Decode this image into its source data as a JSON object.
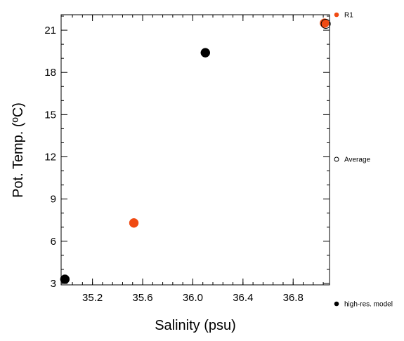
{
  "chart_data": {
    "type": "scatter",
    "xlabel": "Salinity (psu)",
    "ylabel": "Pot. Temp. (ºC)",
    "xlim": [
      34.95,
      37.09
    ],
    "ylim": [
      2.9,
      22.1
    ],
    "x_ticks": [
      35.2,
      35.6,
      36.0,
      36.4,
      36.8
    ],
    "x_tick_labels": [
      "35.2",
      "35.6",
      "36.0",
      "36.4",
      "36.8"
    ],
    "y_ticks": [
      3,
      6,
      9,
      12,
      15,
      18,
      21
    ],
    "y_tick_labels": [
      "3",
      "6",
      "9",
      "12",
      "15",
      "18",
      "21"
    ],
    "grid": false,
    "legend_placement": "right",
    "series": [
      {
        "name": "R1",
        "color": "#f04a12",
        "marker": "filled-circle",
        "points": [
          {
            "x": 35.53,
            "y": 7.3
          },
          {
            "x": 37.05,
            "y": 21.5
          }
        ]
      },
      {
        "name": "Average",
        "color": "#000000",
        "marker": "open-circle",
        "points": [
          {
            "x": 37.06,
            "y": 21.45
          }
        ]
      },
      {
        "name": "high-res. model",
        "color": "#000000",
        "marker": "filled-circle",
        "points": [
          {
            "x": 34.98,
            "y": 3.3
          },
          {
            "x": 36.1,
            "y": 19.4
          }
        ]
      }
    ]
  }
}
